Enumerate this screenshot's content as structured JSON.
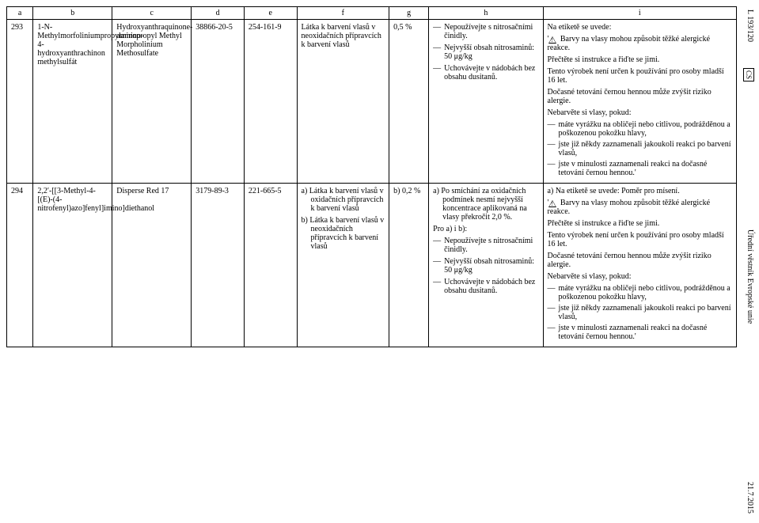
{
  "side": {
    "top": "L 193/120",
    "cs": "CS",
    "mid": "Úřední věstník Evropské unie",
    "bot": "21.7.2015"
  },
  "headers": {
    "a": "a",
    "b": "b",
    "c": "c",
    "d": "d",
    "e": "e",
    "f": "f",
    "g": "g",
    "h": "h",
    "i": "i"
  },
  "row1": {
    "a": "293",
    "b": "1-N-Methylmorfoliniumpropylamino-4-hydroxyanthrachinon methylsulfát",
    "c": "Hydroxyanthraquinone-aminopropyl Methyl Morpholinium Methosulfate",
    "d": "38866-20-5",
    "e": "254-161-9",
    "f": "Látka k barvení vlasů v neoxidačních přípravcích k barvení vlasů",
    "g": "0,5 %",
    "h": {
      "items": [
        "Nepoužívejte s nitrosačními činidly.",
        "Nejvyšší obsah nitrosaminů: 50 μg/kg",
        "Uchovávejte v nádobách bez obsahu dusitanů."
      ]
    },
    "i": {
      "intro": "Na etiketě se uvede:",
      "warn": "Barvy na vlasy mohou způsobit těžké alergické reakce.",
      "p1": "Přečtěte si instrukce a řiďte se jimi.",
      "p2": "Tento výrobek není určen k používání pro osoby mladší 16 let.",
      "p3": "Dočasné tetování černou hennou může zvýšit riziko alergie.",
      "p4": "Nebarvěte si vlasy, pokud:",
      "sub": [
        "máte vyrážku na obličeji nebo citlivou, podrážděnou a poškozenou pokožku hlavy,",
        "jste již někdy zaznamenali jakoukoli reakci po barvení vlasů,",
        "jste v minulosti zaznamenali reakci na dočasné tetování černou hennou.'"
      ]
    }
  },
  "row2": {
    "a": "294",
    "b": "2,2′-[[3-Methyl-4-[(E)-(4-nitrofenyl)azo]fenyl]imino]diethanol",
    "c": "Disperse Red 17",
    "d": "3179-89-3",
    "e": "221-665-5",
    "f": {
      "a": "a) Látka k barvení vlasů v oxidačních přípravcích k barvení vlasů",
      "b": "b) Látka k barvení vlasů v neoxidačních přípravcích k barvení vlasů"
    },
    "g": "b) 0,2 %",
    "h": {
      "a": "a) Po smíchání za oxidačních podmínek nesmí nejvyšší koncentrace aplikovaná na vlasy překročit 2,0 %.",
      "ab_label": "Pro a) i b):",
      "items": [
        "Nepoužívejte s nitrosačními činidly.",
        "Nejvyšší obsah nitrosaminů: 50 μg/kg",
        "Uchovávejte v nádobách bez obsahu dusitanů."
      ]
    },
    "i": {
      "intro": "a) Na etiketě se uvede: Poměr pro mísení.",
      "warn": "Barvy na vlasy mohou způsobit těžké alergické reakce.",
      "p1": "Přečtěte si instrukce a řiďte se jimi.",
      "p2": "Tento výrobek není určen k používání pro osoby mladší 16 let.",
      "p3": "Dočasné tetování černou hennou může zvýšit riziko alergie.",
      "p4": "Nebarvěte si vlasy, pokud:",
      "sub": [
        "máte vyrážku na obličeji nebo citlivou, podrážděnou a poškozenou pokožku hlavy,",
        "jste již někdy zaznamenali jakoukoli reakci po barvení vlasů,",
        "jste v minulosti zaznamenali reakci na dočasné tetování černou hennou.'"
      ]
    }
  }
}
